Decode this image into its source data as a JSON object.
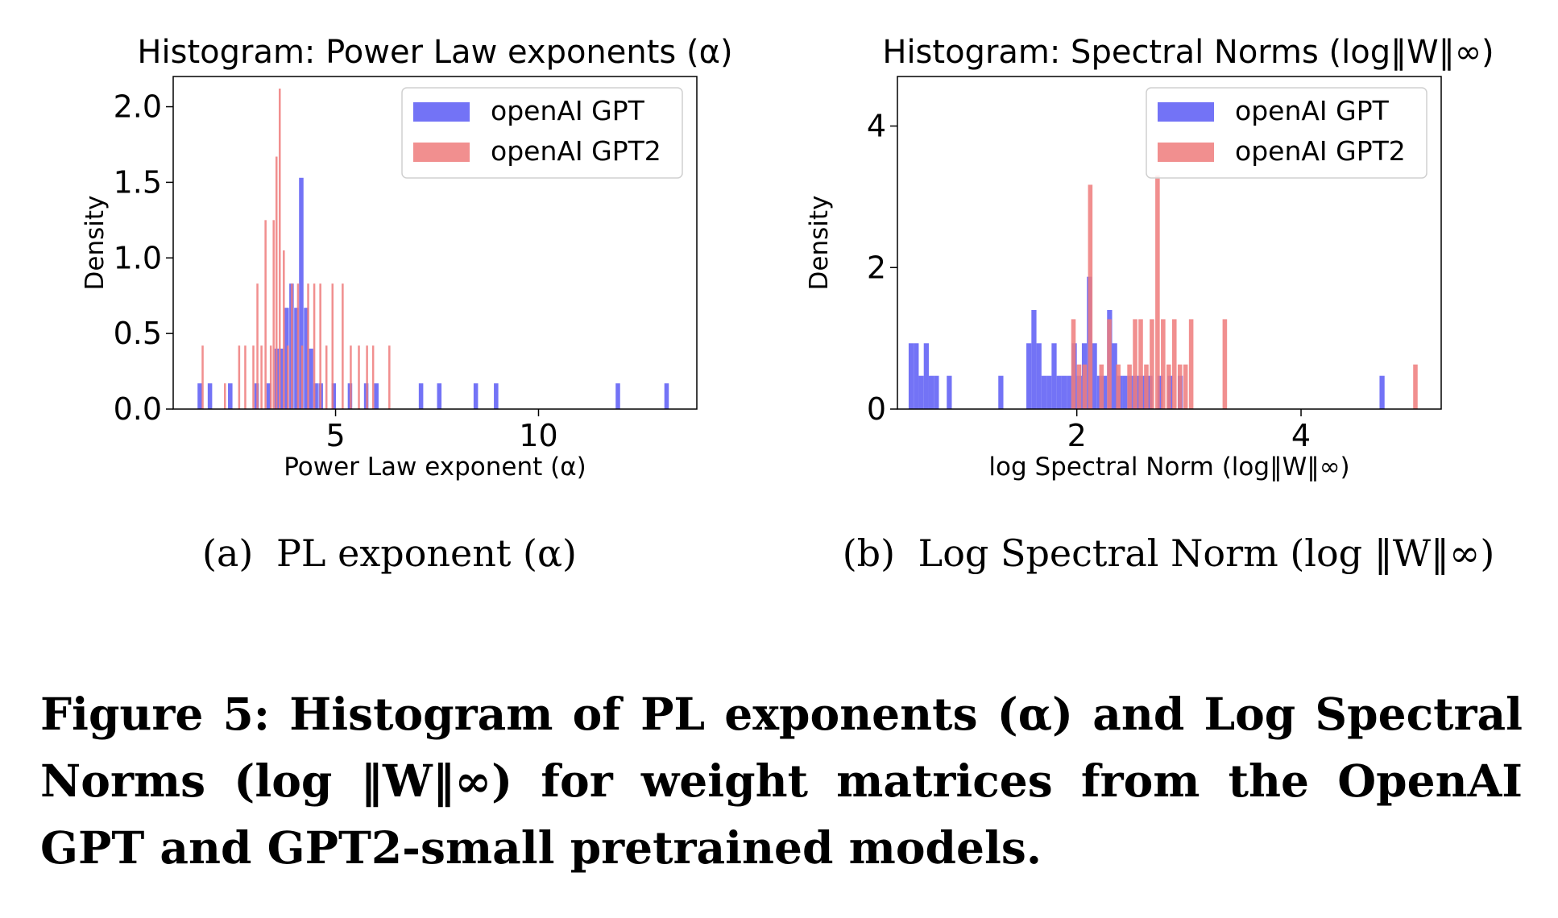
{
  "chart_data": [
    {
      "type": "histogram",
      "panel_label": "(a)",
      "subcaption": "PL exponent (α)",
      "title": "Histogram: Power Law exponents (α)",
      "xlabel": "Power Law exponent (α)",
      "ylabel": "Density",
      "xlim": [
        1.0,
        13.9
      ],
      "ylim": [
        0,
        2.2
      ],
      "xticks": [
        5,
        10
      ],
      "yticks": [
        0.0,
        0.5,
        1.0,
        1.5,
        2.0
      ],
      "ytick_labels": [
        "0.0",
        "0.5",
        "1.0",
        "1.5",
        "2.0"
      ],
      "legend_position": "top-right",
      "series": [
        {
          "name": "openAI GPT",
          "color": "#6b6bf5",
          "bin_width": 0.11,
          "bins": [
            [
              1.6,
              0.17
            ],
            [
              1.85,
              0.17
            ],
            [
              2.35,
              0.17
            ],
            [
              3.0,
              0.17
            ],
            [
              3.3,
              0.17
            ],
            [
              3.5,
              0.4
            ],
            [
              3.62,
              0.4
            ],
            [
              3.74,
              0.67
            ],
            [
              3.86,
              0.83
            ],
            [
              3.98,
              0.67
            ],
            [
              4.1,
              1.53
            ],
            [
              4.22,
              0.67
            ],
            [
              4.34,
              0.4
            ],
            [
              4.46,
              0.17
            ],
            [
              4.58,
              0.17
            ],
            [
              4.9,
              0.17
            ],
            [
              5.3,
              0.17
            ],
            [
              5.7,
              0.17
            ],
            [
              5.95,
              0.17
            ],
            [
              7.05,
              0.17
            ],
            [
              7.5,
              0.17
            ],
            [
              8.4,
              0.17
            ],
            [
              8.9,
              0.17
            ],
            [
              11.9,
              0.17
            ],
            [
              13.1,
              0.17
            ]
          ]
        },
        {
          "name": "openAI GPT2",
          "color": "#ee7b7b",
          "bin_width": 0.05,
          "bins": [
            [
              1.7,
              0.42
            ],
            [
              2.25,
              0.17
            ],
            [
              2.6,
              0.42
            ],
            [
              2.75,
              0.42
            ],
            [
              2.95,
              0.42
            ],
            [
              3.05,
              0.83
            ],
            [
              3.15,
              0.42
            ],
            [
              3.25,
              1.25
            ],
            [
              3.38,
              0.42
            ],
            [
              3.45,
              1.25
            ],
            [
              3.52,
              1.67
            ],
            [
              3.6,
              2.12
            ],
            [
              3.7,
              1.05
            ],
            [
              3.8,
              0.42
            ],
            [
              3.9,
              0.83
            ],
            [
              4.05,
              0.83
            ],
            [
              4.15,
              0.42
            ],
            [
              4.3,
              0.83
            ],
            [
              4.45,
              0.83
            ],
            [
              4.6,
              0.83
            ],
            [
              4.75,
              0.42
            ],
            [
              4.9,
              0.83
            ],
            [
              5.15,
              0.83
            ],
            [
              5.35,
              0.42
            ],
            [
              5.55,
              0.42
            ],
            [
              5.75,
              0.42
            ],
            [
              5.9,
              0.42
            ],
            [
              6.3,
              0.42
            ]
          ]
        }
      ]
    },
    {
      "type": "histogram",
      "panel_label": "(b)",
      "subcaption": "Log Spectral Norm (log ‖W‖∞)",
      "title": "Histogram: Spectral Norms (log‖W‖∞)",
      "xlabel": "log Spectral Norm (log‖W‖∞)",
      "ylabel": "Density",
      "xlim": [
        0.4,
        5.25
      ],
      "ylim": [
        0,
        4.7
      ],
      "xticks": [
        2,
        4
      ],
      "yticks": [
        0,
        2,
        4
      ],
      "ytick_labels": [
        "0",
        "2",
        "4"
      ],
      "legend_position": "top-right",
      "series": [
        {
          "name": "openAI GPT",
          "color": "#6b6bf5",
          "bin_width": 0.045,
          "bins": [
            [
              0.5,
              0.93
            ],
            [
              0.545,
              0.93
            ],
            [
              0.59,
              0.47
            ],
            [
              0.635,
              0.93
            ],
            [
              0.68,
              0.47
            ],
            [
              0.725,
              0.47
            ],
            [
              0.84,
              0.47
            ],
            [
              1.3,
              0.47
            ],
            [
              1.55,
              0.93
            ],
            [
              1.595,
              1.4
            ],
            [
              1.64,
              0.93
            ],
            [
              1.685,
              0.47
            ],
            [
              1.73,
              0.47
            ],
            [
              1.775,
              0.93
            ],
            [
              1.82,
              0.47
            ],
            [
              1.865,
              0.47
            ],
            [
              1.91,
              0.47
            ],
            [
              1.955,
              0.93
            ],
            [
              2.0,
              0.47
            ],
            [
              2.045,
              0.93
            ],
            [
              2.09,
              1.87
            ],
            [
              2.135,
              0.93
            ],
            [
              2.18,
              0.47
            ],
            [
              2.225,
              0.47
            ],
            [
              2.27,
              1.4
            ],
            [
              2.315,
              0.93
            ],
            [
              2.36,
              0.47
            ],
            [
              2.405,
              0.47
            ],
            [
              2.45,
              0.47
            ],
            [
              2.495,
              0.47
            ],
            [
              2.54,
              0.47
            ],
            [
              2.585,
              0.47
            ],
            [
              2.63,
              0.47
            ],
            [
              2.72,
              0.47
            ],
            [
              2.81,
              0.47
            ],
            [
              2.9,
              0.47
            ],
            [
              4.7,
              0.47
            ]
          ]
        },
        {
          "name": "openAI GPT2",
          "color": "#ee7b7b",
          "bin_width": 0.04,
          "bins": [
            [
              1.95,
              1.27
            ],
            [
              2.0,
              0.63
            ],
            [
              2.05,
              0.63
            ],
            [
              2.1,
              3.17
            ],
            [
              2.2,
              0.63
            ],
            [
              2.27,
              1.27
            ],
            [
              2.35,
              0.63
            ],
            [
              2.45,
              0.63
            ],
            [
              2.5,
              1.27
            ],
            [
              2.55,
              1.27
            ],
            [
              2.6,
              0.63
            ],
            [
              2.65,
              1.27
            ],
            [
              2.7,
              3.3
            ],
            [
              2.75,
              1.27
            ],
            [
              2.8,
              0.63
            ],
            [
              2.85,
              1.27
            ],
            [
              2.9,
              0.63
            ],
            [
              2.95,
              0.63
            ],
            [
              3.0,
              1.27
            ],
            [
              3.3,
              1.27
            ],
            [
              5.0,
              0.63
            ]
          ]
        }
      ]
    }
  ],
  "subcaptions": [
    {
      "label": "(a)",
      "text": "PL exponent (α)"
    },
    {
      "label": "(b)",
      "text": "Log Spectral Norm (log ‖W‖∞)"
    }
  ],
  "caption": "Figure 5: Histogram of PL exponents (α) and Log Spectral Norms (log ‖W‖∞) for weight matrices from the OpenAI GPT and GPT2-small pretrained models."
}
